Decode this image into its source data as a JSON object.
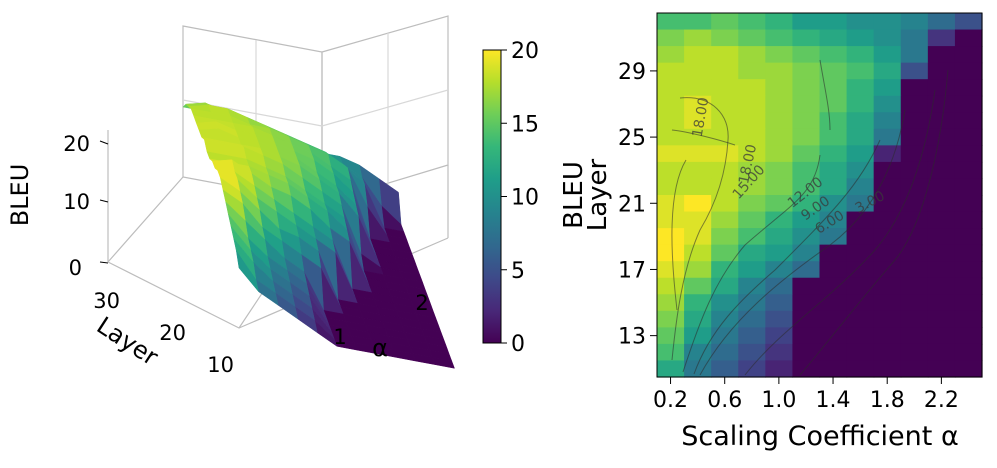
{
  "colormap": {
    "name": "viridis",
    "stops": [
      "#440154",
      "#482878",
      "#3e4989",
      "#31688e",
      "#26828e",
      "#1f9e89",
      "#35b779",
      "#6ece58",
      "#b5de2b",
      "#fde725"
    ]
  },
  "chart_data": [
    {
      "type": "surface",
      "title": "",
      "xlabel": "α",
      "ylabel": "Layer",
      "zlabel": "BLEU",
      "x_ticks": [
        "1",
        "2"
      ],
      "y_ticks": [
        "10",
        "20",
        "30"
      ],
      "z_ticks": [
        "0",
        "10",
        "20"
      ],
      "colorbar": {
        "label": "",
        "ticks": [
          "0",
          "5",
          "10",
          "15",
          "20"
        ],
        "range": [
          0,
          20
        ]
      },
      "note": "3D surface of BLEU over α and layer"
    },
    {
      "type": "heatmap",
      "title": "",
      "xlabel": "Scaling Coefficient α",
      "ylabel": "BLEU\nLayer",
      "ylabel_lines": [
        "BLEU",
        "Layer"
      ],
      "x_tick_labels": [
        "0.2",
        "0.6",
        "1.0",
        "1.4",
        "1.8",
        "2.2"
      ],
      "y_tick_labels": [
        "13",
        "17",
        "21",
        "25",
        "29"
      ],
      "alpha_columns": [
        0.2,
        0.4,
        0.6,
        0.8,
        1.0,
        1.2,
        1.4,
        1.6,
        1.8,
        2.0,
        2.2,
        2.4
      ],
      "layer_rows": [
        32,
        31,
        30,
        29,
        28,
        27,
        26,
        25,
        24,
        23,
        22,
        21,
        20,
        19,
        18,
        17,
        16,
        15,
        14,
        13,
        12,
        11
      ],
      "bleu": [
        [
          14,
          14,
          15,
          14,
          13,
          11,
          11,
          10,
          10,
          9,
          7,
          5
        ],
        [
          16,
          17,
          16,
          15,
          14,
          13,
          12,
          11,
          10,
          8,
          3,
          0
        ],
        [
          17,
          18,
          18,
          17,
          16,
          15,
          14,
          13,
          11,
          8,
          0,
          0
        ],
        [
          18,
          18,
          18,
          17,
          17,
          16,
          15,
          14,
          12,
          5,
          0,
          0
        ],
        [
          18,
          18,
          18,
          18,
          17,
          16,
          15,
          13,
          11,
          0,
          0,
          0
        ],
        [
          18,
          19,
          18,
          18,
          17,
          16,
          15,
          13,
          10,
          0,
          0,
          0
        ],
        [
          18,
          19,
          18,
          18,
          17,
          16,
          14,
          12,
          9,
          0,
          0,
          0
        ],
        [
          18,
          18,
          18,
          18,
          17,
          16,
          14,
          12,
          8,
          0,
          0,
          0
        ],
        [
          19,
          19,
          19,
          18,
          17,
          15,
          13,
          11,
          2,
          0,
          0,
          0
        ],
        [
          18,
          18,
          18,
          17,
          16,
          14,
          12,
          10,
          0,
          0,
          0,
          0
        ],
        [
          18,
          18,
          18,
          17,
          16,
          14,
          12,
          9,
          0,
          0,
          0,
          0
        ],
        [
          19,
          20,
          18,
          16,
          15,
          13,
          10,
          8,
          0,
          0,
          0,
          0
        ],
        [
          19,
          19,
          17,
          15,
          13,
          11,
          9,
          0,
          0,
          0,
          0,
          0
        ],
        [
          20,
          19,
          16,
          14,
          12,
          10,
          8,
          0,
          0,
          0,
          0,
          0
        ],
        [
          20,
          18,
          15,
          12,
          11,
          9,
          0,
          0,
          0,
          0,
          0,
          0
        ],
        [
          19,
          17,
          13,
          11,
          9,
          7,
          0,
          0,
          0,
          0,
          0,
          0
        ],
        [
          18,
          15,
          12,
          9,
          7,
          0,
          0,
          0,
          0,
          0,
          0,
          0
        ],
        [
          17,
          13,
          10,
          8,
          6,
          0,
          0,
          0,
          0,
          0,
          0,
          0
        ],
        [
          16,
          12,
          9,
          7,
          5,
          0,
          0,
          0,
          0,
          0,
          0,
          0
        ],
        [
          15,
          11,
          8,
          6,
          4,
          0,
          0,
          0,
          0,
          0,
          0,
          0
        ],
        [
          14,
          9,
          7,
          5,
          3,
          0,
          0,
          0,
          0,
          0,
          0,
          0
        ],
        [
          12,
          8,
          6,
          4,
          2,
          0,
          0,
          0,
          0,
          0,
          0,
          0
        ]
      ],
      "contour_labels": [
        "18.00",
        "18.00",
        "15.00",
        "12.00",
        "9.00",
        "6.00",
        "3.00"
      ]
    }
  ]
}
